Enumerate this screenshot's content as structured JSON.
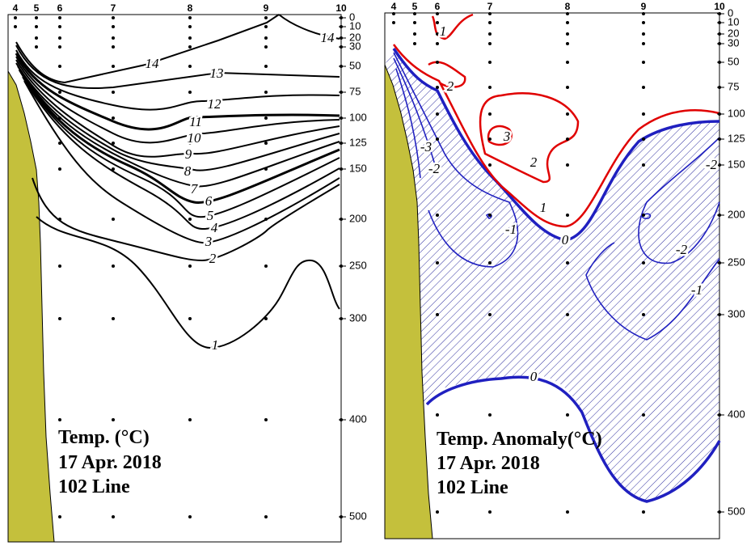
{
  "panels": [
    {
      "title": "Temp. (°C)",
      "date": "17 Apr. 2018",
      "line": "102 Line",
      "stations": [
        "4",
        "5",
        "6",
        "7",
        "8",
        "9",
        "10"
      ],
      "depths": [
        "0",
        "10",
        "20",
        "30",
        "50",
        "75",
        "100",
        "125",
        "150",
        "200",
        "250",
        "300",
        "400",
        "500"
      ],
      "contour_labels": [
        "14",
        "14",
        "13",
        "12",
        "11",
        "10",
        "9",
        "8",
        "7",
        "6",
        "5",
        "4",
        "3",
        "2",
        "1"
      ]
    },
    {
      "title": "Temp. Anomaly(°C)",
      "date": "17 Apr. 2018",
      "line": "102 Line",
      "stations": [
        "4",
        "5",
        "6",
        "7",
        "8",
        "9",
        "10"
      ],
      "depths": [
        "0",
        "10",
        "20",
        "30",
        "50",
        "75",
        "100",
        "125",
        "150",
        "200",
        "250",
        "300",
        "400",
        "500"
      ],
      "contour_labels": [
        "1",
        "2",
        "3",
        "2",
        "1",
        "0",
        "-1",
        "-3",
        "-2",
        "-2",
        "-1",
        "-2",
        "0"
      ]
    }
  ]
}
